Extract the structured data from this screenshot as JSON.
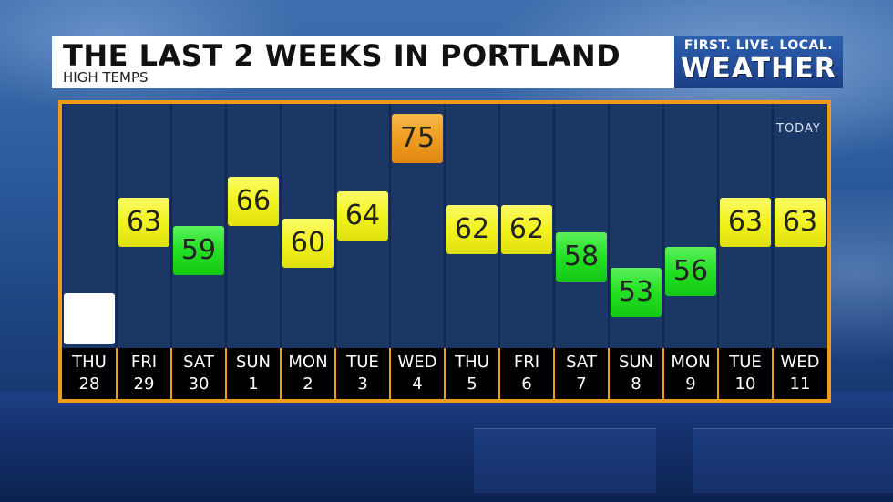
{
  "header": {
    "title": "THE LAST 2 WEEKS IN PORTLAND",
    "subtitle": "HIGH TEMPS"
  },
  "logo": {
    "tagline": "FIRST. LIVE. LOCAL.",
    "wordmark": "WEATHER"
  },
  "today_label": "TODAY",
  "colors": {
    "frame_orange": "#f29a1a",
    "yellow": "#f5f531",
    "green": "#2ee62e",
    "orange_badge": "#f0a020",
    "white_badge": "#ffffff"
  },
  "chart_data": {
    "type": "bar",
    "title": "THE LAST 2 WEEKS IN PORTLAND",
    "subtitle": "HIGH TEMPS",
    "ylim": [
      45,
      80
    ],
    "categories": [
      {
        "day": "THU",
        "date": "28"
      },
      {
        "day": "FRI",
        "date": "29"
      },
      {
        "day": "SAT",
        "date": "30"
      },
      {
        "day": "SUN",
        "date": "1"
      },
      {
        "day": "MON",
        "date": "2"
      },
      {
        "day": "TUE",
        "date": "3"
      },
      {
        "day": "WED",
        "date": "4"
      },
      {
        "day": "THU",
        "date": "5"
      },
      {
        "day": "FRI",
        "date": "6"
      },
      {
        "day": "SAT",
        "date": "7"
      },
      {
        "day": "SUN",
        "date": "8"
      },
      {
        "day": "MON",
        "date": "9"
      },
      {
        "day": "TUE",
        "date": "10"
      },
      {
        "day": "WED",
        "date": "11"
      }
    ],
    "values": [
      null,
      63,
      59,
      66,
      60,
      64,
      75,
      62,
      62,
      58,
      53,
      56,
      63,
      63
    ],
    "badge_colors": [
      "white",
      "yellow",
      "green",
      "yellow",
      "yellow",
      "yellow",
      "orange",
      "yellow",
      "yellow",
      "green",
      "green",
      "green",
      "yellow",
      "yellow"
    ],
    "today_index": 13
  }
}
